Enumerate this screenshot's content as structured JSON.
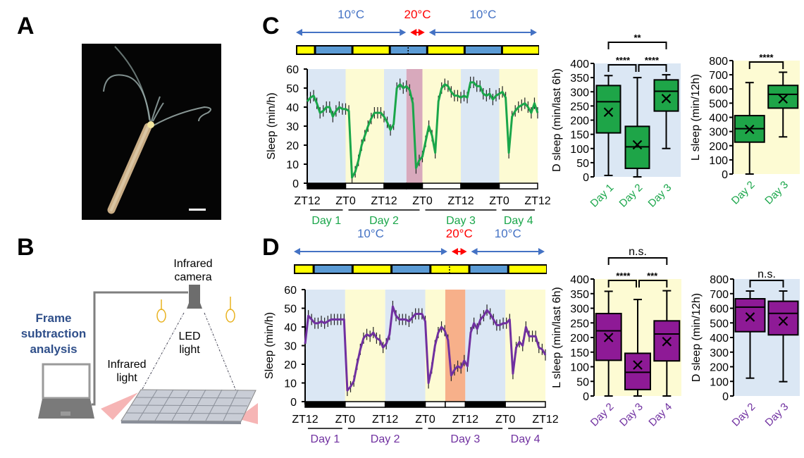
{
  "panels": {
    "A": {
      "label": "A",
      "scale_bar": "scale-bar",
      "image": "hydra-photo"
    },
    "B": {
      "label": "B",
      "labels": {
        "camera_l1": "Infrared",
        "camera_l2": "camera",
        "analysis_l1": "Frame",
        "analysis_l2": "subtraction",
        "analysis_l3": "analysis",
        "led_l1": "LED",
        "led_l2": "light",
        "ir_l1": "Infrared",
        "ir_l2": "light"
      }
    },
    "C": {
      "label": "C"
    },
    "D": {
      "label": "D"
    }
  },
  "colors": {
    "green": "#1aa64a",
    "green_box": "#1ea548",
    "purple": "#7030a0",
    "purple_box": "#8e1a96",
    "temp_blue": "#4472c4",
    "temp_red": "#ff0000",
    "bg_blue": "#dbe7f4",
    "bg_yellow": "#fdfbd3",
    "bg_pink": "#d8a9bc",
    "bg_orange": "#f7b08a",
    "bar_yellow": "#ffff00",
    "bar_blue": "#5b9bd5"
  },
  "chart_data": [
    {
      "id": "C-line",
      "type": "line",
      "ylabel": "Sleep (min/h)",
      "ylim": [
        0,
        60
      ],
      "yticks": [
        0,
        10,
        20,
        30,
        40,
        50,
        60
      ],
      "xtick_labels": [
        "ZT12",
        "ZT0",
        "ZT12",
        "ZT0",
        "ZT12",
        "ZT0",
        "ZT12"
      ],
      "day_labels": [
        "Day 1",
        "Day 2",
        "Day 3",
        "Day 4"
      ],
      "temperature_labels": [
        "10°C",
        "20°C",
        "10°C"
      ],
      "x_hours": 72,
      "background_segments": [
        {
          "from": 0,
          "to": 12,
          "kind": "dark"
        },
        {
          "from": 12,
          "to": 24,
          "kind": "light"
        },
        {
          "from": 24,
          "to": 31,
          "kind": "dark"
        },
        {
          "from": 31,
          "to": 36,
          "kind": "dark-20C"
        },
        {
          "from": 36,
          "to": 48,
          "kind": "light"
        },
        {
          "from": 48,
          "to": 60,
          "kind": "dark"
        },
        {
          "from": 60,
          "to": 72,
          "kind": "light"
        }
      ],
      "series": [
        {
          "name": "Sleep",
          "values": [
            43,
            45,
            46,
            42,
            37,
            38,
            40,
            40,
            35,
            38,
            40,
            39,
            39,
            38,
            3,
            6,
            12,
            20,
            25,
            30,
            34,
            37,
            37,
            37,
            35,
            32,
            28,
            31,
            50,
            52,
            50,
            51,
            49,
            42,
            8,
            12,
            14,
            22,
            30,
            25,
            16,
            43,
            50,
            52,
            51,
            48,
            46,
            46,
            45,
            46,
            45,
            53,
            53,
            51,
            51,
            47,
            46,
            47,
            44,
            46,
            47,
            48,
            45,
            16,
            35,
            38,
            40,
            41,
            42,
            40,
            37,
            42,
            37
          ],
          "error": 3
        }
      ]
    },
    {
      "id": "C-box-D",
      "type": "box",
      "ylabel": "D sleep (min/last 6h)",
      "ylim": [
        0,
        400
      ],
      "yticks": [
        0,
        50,
        100,
        150,
        200,
        250,
        300,
        350,
        400
      ],
      "categories": [
        "Day 1",
        "Day 2",
        "Day 3"
      ],
      "boxes": [
        {
          "min": 5,
          "q1": 155,
          "median": 265,
          "q3": 322,
          "max": 357,
          "mean": 228
        },
        {
          "min": 0,
          "q1": 30,
          "median": 106,
          "q3": 178,
          "max": 350,
          "mean": 113
        },
        {
          "min": 100,
          "q1": 232,
          "median": 302,
          "q3": 342,
          "max": 360,
          "mean": 276
        }
      ],
      "significance": [
        {
          "pair": [
            0,
            1
          ],
          "label": "****"
        },
        {
          "pair": [
            1,
            2
          ],
          "label": "****"
        },
        {
          "pair": [
            0,
            2
          ],
          "label": "**"
        }
      ],
      "background": "dark"
    },
    {
      "id": "C-box-L",
      "type": "box",
      "ylabel": "L sleep (min/12h)",
      "ylim": [
        0,
        800
      ],
      "yticks": [
        0,
        100,
        200,
        300,
        400,
        500,
        600,
        700,
        800
      ],
      "categories": [
        "Day 2",
        "Day 3"
      ],
      "boxes": [
        {
          "min": 0,
          "q1": 225,
          "median": 320,
          "q3": 412,
          "max": 645,
          "mean": 315
        },
        {
          "min": 262,
          "q1": 465,
          "median": 562,
          "q3": 625,
          "max": 718,
          "mean": 530
        }
      ],
      "significance": [
        {
          "pair": [
            0,
            1
          ],
          "label": "****"
        }
      ],
      "background": "light"
    },
    {
      "id": "D-line",
      "type": "line",
      "ylabel": "Sleep (min/h)",
      "ylim": [
        0,
        60
      ],
      "yticks": [
        0,
        10,
        20,
        30,
        40,
        50,
        60
      ],
      "xtick_labels": [
        "ZT12",
        "ZT0",
        "ZT12",
        "ZT0",
        "ZT12",
        "ZT0",
        "ZT12"
      ],
      "day_labels": [
        "Day 1",
        "Day 2",
        "Day 3",
        "Day 4"
      ],
      "temperature_labels": [
        "10°C",
        "20°C",
        "10°C"
      ],
      "x_hours": 72,
      "background_segments": [
        {
          "from": 0,
          "to": 12,
          "kind": "dark"
        },
        {
          "from": 12,
          "to": 24,
          "kind": "light"
        },
        {
          "from": 24,
          "to": 36,
          "kind": "dark"
        },
        {
          "from": 36,
          "to": 42,
          "kind": "light"
        },
        {
          "from": 42,
          "to": 48,
          "kind": "light-20C"
        },
        {
          "from": 48,
          "to": 60,
          "kind": "dark"
        },
        {
          "from": 60,
          "to": 72,
          "kind": "light"
        }
      ],
      "series": [
        {
          "name": "Sleep",
          "values": [
            31,
            46,
            44,
            42,
            42,
            43,
            42,
            43,
            44,
            44,
            44,
            44,
            44,
            6,
            8,
            11,
            20,
            28,
            34,
            36,
            35,
            37,
            34,
            33,
            29,
            31,
            36,
            51,
            46,
            44,
            44,
            44,
            43,
            45,
            47,
            47,
            47,
            43,
            10,
            18,
            30,
            37,
            40,
            38,
            33,
            14,
            17,
            19,
            18,
            22,
            19,
            37,
            42,
            39,
            44,
            46,
            49,
            47,
            44,
            41,
            41,
            42,
            42,
            44,
            15,
            29,
            32,
            30,
            40,
            35,
            35,
            35,
            29,
            28,
            25
          ],
          "error": 3
        }
      ]
    },
    {
      "id": "D-box-L",
      "type": "box",
      "ylabel": "L sleep (min/last 6h)",
      "ylim": [
        0,
        400
      ],
      "yticks": [
        0,
        50,
        100,
        150,
        200,
        250,
        300,
        350,
        400
      ],
      "categories": [
        "Day 2",
        "Day 3",
        "Day 4"
      ],
      "boxes": [
        {
          "min": 0,
          "q1": 122,
          "median": 223,
          "q3": 282,
          "max": 358,
          "mean": 200
        },
        {
          "min": 0,
          "q1": 22,
          "median": 81,
          "q3": 146,
          "max": 330,
          "mean": 106
        },
        {
          "min": 0,
          "q1": 120,
          "median": 212,
          "q3": 257,
          "max": 360,
          "mean": 186
        }
      ],
      "significance": [
        {
          "pair": [
            0,
            1
          ],
          "label": "****"
        },
        {
          "pair": [
            1,
            2
          ],
          "label": "***"
        },
        {
          "pair": [
            0,
            2
          ],
          "label": "n.s."
        }
      ],
      "background": "light"
    },
    {
      "id": "D-box-D",
      "type": "box",
      "ylabel": "D sleep (min/12h)",
      "ylim": [
        0,
        800
      ],
      "yticks": [
        0,
        100,
        200,
        300,
        400,
        500,
        600,
        700,
        800
      ],
      "categories": [
        "Day 2",
        "Day 3"
      ],
      "boxes": [
        {
          "min": 122,
          "q1": 440,
          "median": 608,
          "q3": 665,
          "max": 718,
          "mean": 540
        },
        {
          "min": 98,
          "q1": 418,
          "median": 565,
          "q3": 648,
          "max": 718,
          "mean": 512
        }
      ],
      "significance": [
        {
          "pair": [
            0,
            1
          ],
          "label": "n.s."
        }
      ],
      "background": "dark"
    }
  ]
}
